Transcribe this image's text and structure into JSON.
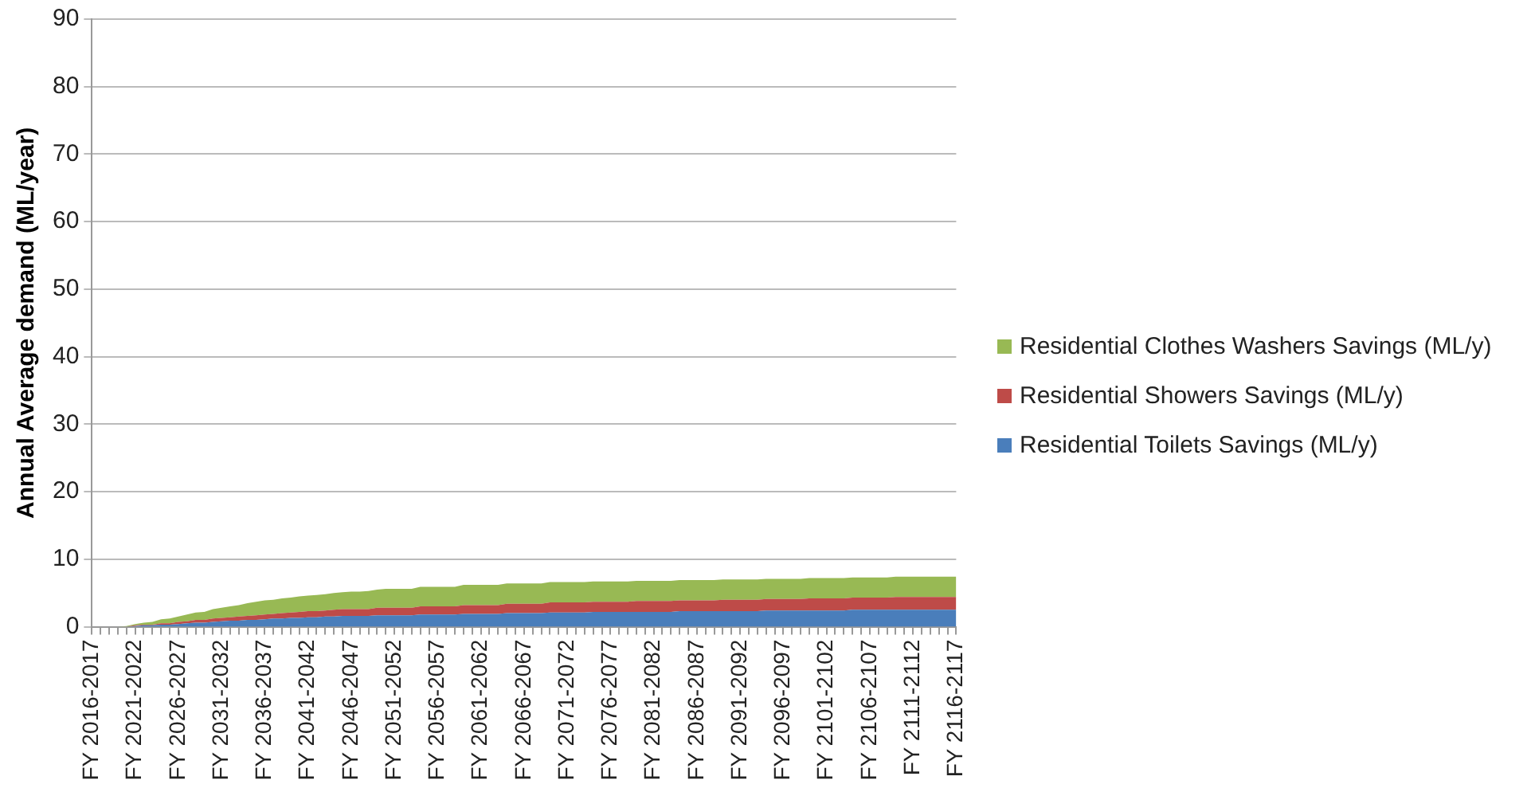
{
  "chart_data": {
    "type": "area",
    "stacked": true,
    "ylabel": "Annual Average demand (ML/year)",
    "categories": [
      "FY 2016-2017",
      null,
      null,
      null,
      null,
      "FY 2021-2022",
      null,
      null,
      null,
      null,
      "FY 2026-2027",
      null,
      null,
      null,
      null,
      "FY 2031-2032",
      null,
      null,
      null,
      null,
      "FY 2036-2037",
      null,
      null,
      null,
      null,
      "FY 2041-2042",
      null,
      null,
      null,
      null,
      "FY 2046-2047",
      null,
      null,
      null,
      null,
      "FY 2051-2052",
      null,
      null,
      null,
      null,
      "FY 2056-2057",
      null,
      null,
      null,
      null,
      "FY 2061-2062",
      null,
      null,
      null,
      null,
      "FY 2066-2067",
      null,
      null,
      null,
      null,
      "FY 2071-2072",
      null,
      null,
      null,
      null,
      "FY 2076-2077",
      null,
      null,
      null,
      null,
      "FY 2081-2082",
      null,
      null,
      null,
      null,
      "FY 2086-2087",
      null,
      null,
      null,
      null,
      "FY 2091-2092",
      null,
      null,
      null,
      null,
      "FY 2096-2097",
      null,
      null,
      null,
      null,
      "FY 2101-2102",
      null,
      null,
      null,
      null,
      "FY 2106-2107",
      null,
      null,
      null,
      null,
      "FY 2111-2112",
      null,
      null,
      null,
      null,
      "FY 2116-2117"
    ],
    "series": [
      {
        "name": "Residential Toilets Savings (ML/y)",
        "color": "#4a7ebb",
        "values": [
          0,
          0,
          0,
          0,
          0,
          0.1,
          0.2,
          0.2,
          0.3,
          0.3,
          0.4,
          0.5,
          0.6,
          0.6,
          0.7,
          0.8,
          0.9,
          0.9,
          1,
          1,
          1.1,
          1.2,
          1.2,
          1.3,
          1.3,
          1.4,
          1.4,
          1.5,
          1.5,
          1.6,
          1.6,
          1.6,
          1.6,
          1.7,
          1.7,
          1.7,
          1.7,
          1.7,
          1.8,
          1.8,
          1.8,
          1.8,
          1.8,
          1.9,
          1.9,
          1.9,
          1.9,
          1.9,
          2,
          2,
          2,
          2,
          2,
          2.1,
          2.1,
          2.1,
          2.1,
          2.1,
          2.2,
          2.2,
          2.2,
          2.2,
          2.2,
          2.2,
          2.2,
          2.2,
          2.2,
          2.2,
          2.3,
          2.3,
          2.3,
          2.3,
          2.3,
          2.3,
          2.3,
          2.3,
          2.3,
          2.3,
          2.4,
          2.4,
          2.4,
          2.4,
          2.4,
          2.4,
          2.4,
          2.4,
          2.4,
          2.4,
          2.5,
          2.5,
          2.5,
          2.5,
          2.5,
          2.5,
          2.5,
          2.5,
          2.5,
          2.5,
          2.5,
          2.5,
          2.5
        ]
      },
      {
        "name": "Residential Showers Savings (ML/y)",
        "color": "#be4b48",
        "values": [
          0,
          0,
          0,
          0,
          0,
          0.1,
          0.1,
          0.1,
          0.2,
          0.2,
          0.3,
          0.3,
          0.4,
          0.4,
          0.5,
          0.5,
          0.5,
          0.6,
          0.6,
          0.7,
          0.7,
          0.7,
          0.8,
          0.8,
          0.9,
          0.9,
          0.9,
          0.9,
          1,
          1,
          1,
          1,
          1,
          1.1,
          1.1,
          1.1,
          1.1,
          1.1,
          1.2,
          1.2,
          1.2,
          1.2,
          1.2,
          1.3,
          1.3,
          1.3,
          1.3,
          1.3,
          1.4,
          1.4,
          1.4,
          1.4,
          1.4,
          1.5,
          1.5,
          1.5,
          1.5,
          1.5,
          1.5,
          1.5,
          1.5,
          1.5,
          1.5,
          1.6,
          1.6,
          1.6,
          1.6,
          1.6,
          1.6,
          1.6,
          1.6,
          1.6,
          1.6,
          1.7,
          1.7,
          1.7,
          1.7,
          1.7,
          1.7,
          1.7,
          1.7,
          1.7,
          1.7,
          1.8,
          1.8,
          1.8,
          1.8,
          1.8,
          1.8,
          1.8,
          1.8,
          1.8,
          1.8,
          1.9,
          1.9,
          1.9,
          1.9,
          1.9,
          1.9,
          1.9,
          1.9
        ]
      },
      {
        "name": "Residential Clothes Washers Savings (ML/y)",
        "color": "#98b954",
        "values": [
          0,
          0,
          0,
          0,
          0.1,
          0.2,
          0.3,
          0.4,
          0.6,
          0.7,
          0.8,
          1,
          1.1,
          1.2,
          1.4,
          1.5,
          1.6,
          1.7,
          1.9,
          2,
          2.1,
          2.1,
          2.2,
          2.2,
          2.3,
          2.3,
          2.4,
          2.4,
          2.5,
          2.5,
          2.6,
          2.6,
          2.7,
          2.7,
          2.8,
          2.8,
          2.8,
          2.8,
          2.9,
          2.9,
          2.9,
          2.9,
          2.9,
          3,
          3,
          3,
          3,
          3,
          3,
          3,
          3,
          3,
          3,
          3,
          3,
          3,
          3,
          3,
          3,
          3,
          3,
          3,
          3,
          3,
          3,
          3,
          3,
          3,
          3,
          3,
          3,
          3,
          3,
          3,
          3,
          3,
          3,
          3,
          3,
          3,
          3,
          3,
          3,
          3,
          3,
          3,
          3,
          3,
          3,
          3,
          3,
          3,
          3,
          3,
          3,
          3,
          3,
          3,
          3,
          3,
          3
        ]
      }
    ],
    "ylim": [
      0,
      90
    ],
    "yticks": [
      0,
      10,
      20,
      30,
      40,
      50,
      60,
      70,
      80,
      90
    ],
    "grid": "y",
    "legend": "right"
  }
}
